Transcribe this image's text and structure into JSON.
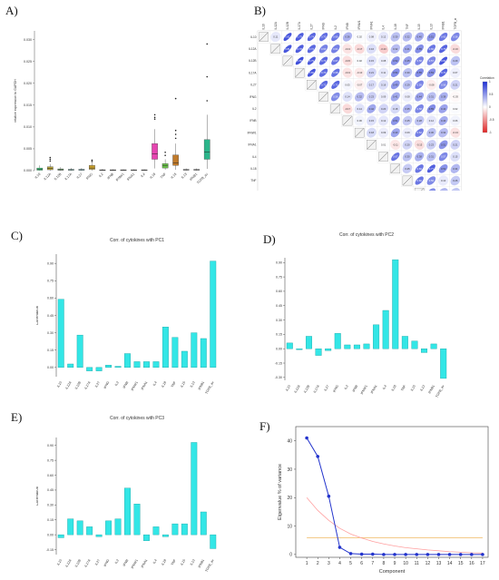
{
  "panel_labels": {
    "a": "A)",
    "b": "B)",
    "c": "C)",
    "d": "D)",
    "e": "E)",
    "f": "F)"
  },
  "colors": {
    "bar": "#33e6e6",
    "bar_stroke": "#1aa6a6",
    "pos": "#1d2fd4",
    "neg": "#e02424",
    "scree": "#2233cc",
    "curve1": "#ff9f9f",
    "curve2": "#f0b860"
  },
  "cytokines": [
    "IL10",
    "IL12A",
    "IL12B",
    "IL17A",
    "IL27",
    "IFNG",
    "IL2",
    "IFNB",
    "IFNW1",
    "IFNA1",
    "IL4",
    "IL18",
    "TNF",
    "IL15",
    "IL13",
    "IFNB1",
    "TGFB_av"
  ],
  "chart_data": [
    {
      "id": "A",
      "type": "box",
      "ylabel": "relative expression to GAPDH",
      "yticks": [
        "0.000",
        "0.005",
        "0.010",
        "0.015",
        "0.020",
        "0.025",
        "0.030"
      ],
      "ylim": [
        0,
        0.032
      ],
      "categories": [
        "IL10",
        "IL12A",
        "IL12B",
        "IL17A",
        "IL27",
        "IFNG",
        "IL2",
        "IFNB",
        "IFNW1",
        "IFNA1",
        "IL4",
        "IL18",
        "TNF",
        "IL15",
        "IL13",
        "IFNB1",
        "TGFB_av"
      ],
      "colors": [
        "#3ad27e",
        "#b8a53a",
        "#6aa86a",
        "#3ab0a0",
        "#38a8b8",
        "#c9a02b",
        "#888888",
        "#777777",
        "#888888",
        "#888888",
        "#888888",
        "#e645b0",
        "#6ac04a",
        "#c07a2a",
        "#aaaaaa",
        "#aaaaaa",
        "#2bb58a"
      ],
      "boxes": [
        {
          "q1": 0.0001,
          "med": 0.0003,
          "q3": 0.0006,
          "lo": 0,
          "hi": 0.0012,
          "out": []
        },
        {
          "q1": 0.0002,
          "med": 0.0005,
          "q3": 0.0009,
          "lo": 0,
          "hi": 0.0015,
          "out": [
            0.0022,
            0.0026,
            0.003
          ]
        },
        {
          "q1": 0.0001,
          "med": 0.0002,
          "q3": 0.0004,
          "lo": 0,
          "hi": 0.0008,
          "out": []
        },
        {
          "q1": 0.0001,
          "med": 0.0002,
          "q3": 0.0003,
          "lo": 0,
          "hi": 0.0006,
          "out": []
        },
        {
          "q1": 0.0001,
          "med": 0.0002,
          "q3": 0.0003,
          "lo": 0,
          "hi": 0.0006,
          "out": []
        },
        {
          "q1": 0.0003,
          "med": 0.0006,
          "q3": 0.0012,
          "lo": 0,
          "hi": 0.0018,
          "out": [
            0.0021,
            0.0024
          ]
        },
        {
          "q1": 5e-05,
          "med": 0.0001,
          "q3": 0.0002,
          "lo": 0,
          "hi": 0.0004,
          "out": []
        },
        {
          "q1": 5e-05,
          "med": 0.0001,
          "q3": 0.0002,
          "lo": 0,
          "hi": 0.0003,
          "out": []
        },
        {
          "q1": 5e-05,
          "med": 0.0001,
          "q3": 0.0002,
          "lo": 0,
          "hi": 0.0003,
          "out": []
        },
        {
          "q1": 5e-05,
          "med": 0.0001,
          "q3": 0.0002,
          "lo": 0,
          "hi": 0.0003,
          "out": []
        },
        {
          "q1": 5e-05,
          "med": 0.0001,
          "q3": 0.0002,
          "lo": 0,
          "hi": 0.0003,
          "out": []
        },
        {
          "q1": 0.0026,
          "med": 0.0038,
          "q3": 0.0062,
          "lo": 0.0005,
          "hi": 0.0095,
          "out": [
            0.0118,
            0.0122,
            0.0128
          ]
        },
        {
          "q1": 0.0006,
          "med": 0.0012,
          "q3": 0.0016,
          "lo": 0.0002,
          "hi": 0.0026,
          "out": [
            0.0035,
            0.0042
          ]
        },
        {
          "q1": 0.0012,
          "med": 0.0018,
          "q3": 0.0036,
          "lo": 0.0002,
          "hi": 0.0062,
          "out": [
            0.0074,
            0.0083,
            0.0092,
            0.0165
          ]
        },
        {
          "q1": 0.0001,
          "med": 0.0002,
          "q3": 0.0003,
          "lo": 0,
          "hi": 0.0005,
          "out": []
        },
        {
          "q1": 0.0001,
          "med": 0.0002,
          "q3": 0.0003,
          "lo": 0,
          "hi": 0.0005,
          "out": []
        },
        {
          "q1": 0.0026,
          "med": 0.0043,
          "q3": 0.0071,
          "lo": 0.0004,
          "hi": 0.0128,
          "out": [
            0.016,
            0.0215,
            0.029
          ]
        }
      ]
    },
    {
      "id": "B",
      "type": "heatmap",
      "legend_title": "Correlation",
      "legend_ticks": [
        "1",
        "0.5",
        "0",
        "-0.5",
        "-1"
      ],
      "labels": [
        "IL10",
        "IL12A",
        "IL12B",
        "IL17A",
        "IL27",
        "IFNG",
        "IL2",
        "IFNB",
        "IFNW1",
        "IFNA1",
        "IL4",
        "IL18",
        "TNF",
        "IL15",
        "IL13",
        "IFNB1",
        "TGFB_av"
      ],
      "matrix": [
        [
          1,
          0.11,
          0.82,
          0.79,
          0.74,
          0.7,
          0.66,
          0.36,
          0.02,
          0.08,
          0.12,
          0.3,
          0.32,
          0.4,
          0.51,
          0.65,
          0.58
        ],
        [
          0.11,
          1,
          0.81,
          0.78,
          0.72,
          0.6,
          0.61,
          -0.13,
          -0.17,
          0.16,
          -0.23,
          0.32,
          0.41,
          0.55,
          0.66,
          0.75,
          -0.16
        ],
        [
          0.82,
          0.81,
          1,
          0.85,
          0.79,
          0.73,
          0.67,
          -0.15,
          0.02,
          0.15,
          0.08,
          0.52,
          0.45,
          0.58,
          0.57,
          0.82,
          0.29
        ],
        [
          0.79,
          0.78,
          0.85,
          1,
          0.82,
          0.7,
          0.68,
          -0.13,
          -0.1,
          0.21,
          0.11,
          0.54,
          0.3,
          0.55,
          0.53,
          0.74,
          0.07
        ],
        [
          0.74,
          0.72,
          0.79,
          0.82,
          1,
          0.72,
          0.73,
          0.05,
          -0.07,
          0.17,
          0.16,
          0.49,
          0.29,
          0.59,
          -0.08,
          0.56,
          0.21
        ],
        [
          0.7,
          0.6,
          0.73,
          0.7,
          0.72,
          1,
          0.56,
          0.14,
          0.32,
          0.23,
          0.09,
          0.41,
          0.08,
          0.44,
          0.31,
          0.38,
          -0.03
        ],
        [
          0.66,
          0.61,
          0.67,
          0.68,
          0.73,
          0.56,
          1,
          -0.17,
          0.14,
          0.42,
          0.2,
          0.18,
          0.35,
          0.58,
          0.55,
          0.44,
          0.02
        ],
        [
          0.36,
          -0.13,
          -0.15,
          -0.13,
          0.05,
          0.14,
          -0.17,
          1,
          0.06,
          0.15,
          0.12,
          0.51,
          0.25,
          0.28,
          0.12,
          0.4,
          0.06
        ],
        [
          0.02,
          -0.17,
          0.02,
          -0.1,
          -0.07,
          0.32,
          0.14,
          0.06,
          1,
          0.18,
          0.09,
          0.43,
          0.09,
          0.62,
          0.3,
          0.32,
          -0.13
        ],
        [
          0.08,
          0.16,
          0.15,
          0.21,
          0.17,
          0.23,
          0.42,
          0.15,
          0.18,
          1,
          0.01,
          -0.11,
          0.2,
          -0.15,
          0.23,
          0.51,
          0.21
        ],
        [
          0.12,
          -0.23,
          0.08,
          0.11,
          0.16,
          0.09,
          0.2,
          0.12,
          0.09,
          0.01,
          1,
          0.67,
          0.3,
          0.38,
          0.31,
          0.57,
          0.15
        ],
        [
          0.3,
          0.32,
          0.52,
          0.54,
          0.49,
          0.41,
          0.18,
          0.51,
          0.43,
          -0.11,
          0.67,
          1,
          0.25,
          0.66,
          0.77,
          0.52,
          0.34
        ],
        [
          0.32,
          0.41,
          0.45,
          0.3,
          0.29,
          0.08,
          0.35,
          0.25,
          0.09,
          0.2,
          0.3,
          0.25,
          1,
          0.66,
          0.56,
          0.1,
          0.26
        ],
        [
          0.4,
          0.55,
          0.58,
          0.55,
          0.59,
          0.44,
          0.58,
          0.28,
          0.62,
          -0.15,
          0.38,
          0.66,
          0.66,
          1,
          0.54,
          0.34,
          0.27
        ],
        [
          0.51,
          0.66,
          0.57,
          0.53,
          -0.08,
          0.31,
          0.55,
          0.12,
          0.3,
          0.23,
          0.31,
          0.77,
          0.56,
          0.54,
          1,
          0.7,
          0.09
        ],
        [
          0.65,
          0.75,
          0.82,
          0.74,
          0.56,
          0.38,
          0.44,
          0.4,
          0.32,
          0.51,
          0.57,
          0.52,
          0.1,
          0.34,
          0.7,
          1,
          0.18
        ],
        [
          0.58,
          -0.16,
          0.29,
          0.07,
          0.21,
          -0.03,
          0.02,
          0.06,
          -0.13,
          0.21,
          0.15,
          0.34,
          0.26,
          0.27,
          0.09,
          0.18,
          1
        ]
      ]
    },
    {
      "id": "C",
      "type": "bar",
      "title": "Corr. of cytokines with PC1",
      "ylabel": "Correlation",
      "ylim": [
        -0.08,
        0.98
      ],
      "yticks": [
        0,
        0.15,
        0.3,
        0.45,
        0.6,
        0.75,
        0.9
      ],
      "ytick_labels": [
        "0.00",
        "0.15",
        "0.30",
        "0.45",
        "0.60",
        "0.75",
        "0.90"
      ],
      "categories": [
        "IL10",
        "IL12A",
        "IL12B",
        "IL17A",
        "IL27",
        "IFNG",
        "IL2",
        "IFNB",
        "IFNW1",
        "IFNA1",
        "IL4",
        "IL18",
        "TNF",
        "IL15",
        "IL13",
        "IFNB1",
        "TGFB_av"
      ],
      "values": [
        0.59,
        0.03,
        0.28,
        -0.03,
        -0.03,
        0.02,
        0.01,
        0.12,
        0.05,
        0.05,
        0.05,
        0.35,
        0.26,
        0.14,
        0.3,
        0.25,
        0.92
      ]
    },
    {
      "id": "D",
      "type": "bar",
      "title": "Corr. of cytokines with PC2",
      "ylabel": "Correlation",
      "ylim": [
        -0.33,
        0.95
      ],
      "yticks": [
        -0.3,
        -0.15,
        0,
        0.15,
        0.3,
        0.45,
        0.6,
        0.75,
        0.9
      ],
      "ytick_labels": [
        "-0.30",
        "-0.15",
        "0.00",
        "0.15",
        "0.30",
        "0.45",
        "0.60",
        "0.75",
        "0.90"
      ],
      "categories": [
        "IL10",
        "IL12A",
        "IL12B",
        "IL17A",
        "IL27",
        "IFNG",
        "IL2",
        "IFNB",
        "IFNW1",
        "IFNA1",
        "IL4",
        "IL18",
        "TNF",
        "IL15",
        "IL13",
        "IFNB1",
        "TGFB_av"
      ],
      "values": [
        0.06,
        -0.01,
        0.13,
        -0.07,
        -0.02,
        0.16,
        0.04,
        0.04,
        0.05,
        0.25,
        0.4,
        0.93,
        0.13,
        0.08,
        -0.04,
        0.05,
        -0.31
      ]
    },
    {
      "id": "E",
      "type": "bar",
      "title": "Corr. of cytokines with PC3",
      "ylabel": "Correlation",
      "ylim": [
        -0.2,
        0.98
      ],
      "yticks": [
        -0.15,
        0,
        0.15,
        0.3,
        0.45,
        0.6,
        0.75,
        0.9
      ],
      "ytick_labels": [
        "-0.15",
        "0.00",
        "0.15",
        "0.30",
        "0.45",
        "0.60",
        "0.75",
        "0.90"
      ],
      "categories": [
        "IL10",
        "IL12A",
        "IL12B",
        "IL17A",
        "IL27",
        "IFNG",
        "IL2",
        "IFNB",
        "IFNW1",
        "IFNA1",
        "IL4",
        "IL18",
        "TNF",
        "IL15",
        "IL13",
        "IFNB1",
        "TGFB_av"
      ],
      "values": [
        -0.03,
        0.16,
        0.14,
        0.08,
        -0.02,
        0.14,
        0.16,
        0.47,
        0.31,
        -0.06,
        0.08,
        -0.02,
        0.11,
        0.11,
        0.93,
        0.23,
        -0.14
      ]
    },
    {
      "id": "F",
      "type": "line",
      "xlabel": "Component",
      "ylabel": "Eigenvalue % of variance",
      "xlim": [
        0,
        17.5
      ],
      "ylim": [
        -1,
        45
      ],
      "xticks": [
        1,
        2,
        3,
        4,
        5,
        6,
        7,
        8,
        9,
        10,
        11,
        12,
        13,
        14,
        15,
        16,
        17
      ],
      "yticks": [
        0,
        10,
        20,
        30,
        40
      ],
      "x": [
        1,
        2,
        3,
        4,
        5,
        6,
        7,
        8,
        9,
        10,
        11,
        12,
        13,
        14,
        15,
        16,
        17
      ],
      "series": [
        {
          "values": [
            41,
            34.5,
            20.5,
            2.5,
            0.3,
            0.1,
            0.1,
            0,
            0,
            0,
            0,
            0,
            0,
            0,
            0,
            0,
            0
          ]
        },
        {
          "values": [
            20,
            15.5,
            12,
            9.2,
            7.2,
            5.8,
            4.6,
            3.7,
            3.0,
            2.4,
            2.0,
            1.6,
            1.3,
            1.0,
            0.8,
            0.6,
            0.5
          ]
        },
        {
          "values": [
            5.9,
            5.9,
            5.9,
            5.9,
            5.9,
            5.9,
            5.9,
            5.9,
            5.9,
            5.9,
            5.9,
            5.9,
            5.9,
            5.9,
            5.9,
            5.9,
            5.9
          ]
        }
      ]
    }
  ]
}
